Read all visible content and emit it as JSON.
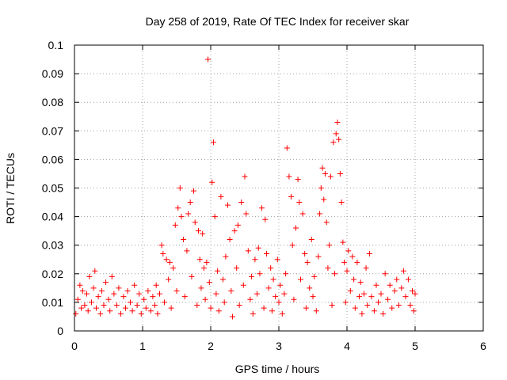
{
  "chart_data": {
    "type": "scatter",
    "title": "Day 258 of 2019, Rate Of TEC Index for receiver skar",
    "xlabel": "GPS time / hours",
    "ylabel": "ROTI / TECUs",
    "xlim": [
      0,
      6
    ],
    "ylim": [
      0,
      0.1
    ],
    "xticks": [
      "0",
      "1",
      "2",
      "3",
      "4",
      "5",
      "6"
    ],
    "yticks": [
      "0",
      "0.01",
      "0.02",
      "0.03",
      "0.04",
      "0.05",
      "0.06",
      "0.07",
      "0.08",
      "0.09",
      "0.1"
    ],
    "grid": true,
    "legend": "none",
    "marker": "+",
    "color": "#ff0000",
    "series": [
      {
        "name": "ROTI",
        "points": [
          [
            0.02,
            0.006
          ],
          [
            0.05,
            0.011
          ],
          [
            0.08,
            0.016
          ],
          [
            0.1,
            0.008
          ],
          [
            0.12,
            0.014
          ],
          [
            0.15,
            0.009
          ],
          [
            0.18,
            0.013
          ],
          [
            0.2,
            0.007
          ],
          [
            0.22,
            0.019
          ],
          [
            0.25,
            0.01
          ],
          [
            0.28,
            0.015
          ],
          [
            0.3,
            0.021
          ],
          [
            0.32,
            0.008
          ],
          [
            0.35,
            0.012
          ],
          [
            0.38,
            0.006
          ],
          [
            0.4,
            0.014
          ],
          [
            0.43,
            0.009
          ],
          [
            0.46,
            0.017
          ],
          [
            0.5,
            0.011
          ],
          [
            0.52,
            0.007
          ],
          [
            0.55,
            0.019
          ],
          [
            0.58,
            0.013
          ],
          [
            0.62,
            0.009
          ],
          [
            0.65,
            0.015
          ],
          [
            0.68,
            0.006
          ],
          [
            0.72,
            0.012
          ],
          [
            0.75,
            0.008
          ],
          [
            0.78,
            0.014
          ],
          [
            0.82,
            0.01
          ],
          [
            0.85,
            0.007
          ],
          [
            0.88,
            0.016
          ],
          [
            0.92,
            0.009
          ],
          [
            0.95,
            0.013
          ],
          [
            0.98,
            0.006
          ],
          [
            1.02,
            0.011
          ],
          [
            1.05,
            0.008
          ],
          [
            1.08,
            0.014
          ],
          [
            1.12,
            0.007
          ],
          [
            1.15,
            0.012
          ],
          [
            1.18,
            0.009
          ],
          [
            1.2,
            0.016
          ],
          [
            1.22,
            0.006
          ],
          [
            1.25,
            0.013
          ],
          [
            1.28,
            0.03
          ],
          [
            1.3,
            0.027
          ],
          [
            1.32,
            0.01
          ],
          [
            1.35,
            0.025
          ],
          [
            1.38,
            0.018
          ],
          [
            1.4,
            0.024
          ],
          [
            1.42,
            0.008
          ],
          [
            1.45,
            0.022
          ],
          [
            1.48,
            0.037
          ],
          [
            1.5,
            0.014
          ],
          [
            1.52,
            0.043
          ],
          [
            1.55,
            0.05
          ],
          [
            1.57,
            0.04
          ],
          [
            1.6,
            0.032
          ],
          [
            1.62,
            0.012
          ],
          [
            1.65,
            0.028
          ],
          [
            1.67,
            0.041
          ],
          [
            1.7,
            0.045
          ],
          [
            1.72,
            0.019
          ],
          [
            1.75,
            0.049
          ],
          [
            1.77,
            0.038
          ],
          [
            1.8,
            0.009
          ],
          [
            1.82,
            0.035
          ],
          [
            1.84,
            0.025
          ],
          [
            1.86,
            0.015
          ],
          [
            1.88,
            0.034
          ],
          [
            1.9,
            0.022
          ],
          [
            1.92,
            0.011
          ],
          [
            1.94,
            0.024
          ],
          [
            1.96,
            0.095
          ],
          [
            1.98,
            0.017
          ],
          [
            2.0,
            0.008
          ],
          [
            2.02,
            0.052
          ],
          [
            2.04,
            0.066
          ],
          [
            2.06,
            0.04
          ],
          [
            2.08,
            0.013
          ],
          [
            2.1,
            0.021
          ],
          [
            2.12,
            0.007
          ],
          [
            2.15,
            0.047
          ],
          [
            2.18,
            0.018
          ],
          [
            2.2,
            0.01
          ],
          [
            2.22,
            0.026
          ],
          [
            2.25,
            0.044
          ],
          [
            2.28,
            0.032
          ],
          [
            2.3,
            0.014
          ],
          [
            2.32,
            0.005
          ],
          [
            2.35,
            0.035
          ],
          [
            2.38,
            0.022
          ],
          [
            2.4,
            0.037
          ],
          [
            2.42,
            0.009
          ],
          [
            2.45,
            0.045
          ],
          [
            2.48,
            0.016
          ],
          [
            2.5,
            0.054
          ],
          [
            2.52,
            0.041
          ],
          [
            2.55,
            0.028
          ],
          [
            2.58,
            0.011
          ],
          [
            2.6,
            0.019
          ],
          [
            2.62,
            0.006
          ],
          [
            2.65,
            0.025
          ],
          [
            2.68,
            0.013
          ],
          [
            2.7,
            0.029
          ],
          [
            2.72,
            0.02
          ],
          [
            2.75,
            0.043
          ],
          [
            2.78,
            0.008
          ],
          [
            2.8,
            0.039
          ],
          [
            2.82,
            0.027
          ],
          [
            2.85,
            0.015
          ],
          [
            2.88,
            0.022
          ],
          [
            2.9,
            0.007
          ],
          [
            2.92,
            0.018
          ],
          [
            2.95,
            0.012
          ],
          [
            2.98,
            0.025
          ],
          [
            3.0,
            0.01
          ],
          [
            3.02,
            0.016
          ],
          [
            3.05,
            0.006
          ],
          [
            3.08,
            0.013
          ],
          [
            3.1,
            0.02
          ],
          [
            3.12,
            0.064
          ],
          [
            3.15,
            0.054
          ],
          [
            3.18,
            0.047
          ],
          [
            3.2,
            0.03
          ],
          [
            3.22,
            0.011
          ],
          [
            3.25,
            0.036
          ],
          [
            3.28,
            0.053
          ],
          [
            3.3,
            0.045
          ],
          [
            3.32,
            0.018
          ],
          [
            3.35,
            0.041
          ],
          [
            3.38,
            0.027
          ],
          [
            3.4,
            0.008
          ],
          [
            3.42,
            0.024
          ],
          [
            3.45,
            0.015
          ],
          [
            3.48,
            0.032
          ],
          [
            3.5,
            0.012
          ],
          [
            3.52,
            0.019
          ],
          [
            3.55,
            0.007
          ],
          [
            3.58,
            0.026
          ],
          [
            3.6,
            0.041
          ],
          [
            3.62,
            0.05
          ],
          [
            3.64,
            0.057
          ],
          [
            3.66,
            0.046
          ],
          [
            3.68,
            0.055
          ],
          [
            3.7,
            0.038
          ],
          [
            3.72,
            0.022
          ],
          [
            3.74,
            0.03
          ],
          [
            3.76,
            0.054
          ],
          [
            3.78,
            0.009
          ],
          [
            3.8,
            0.066
          ],
          [
            3.82,
            0.02
          ],
          [
            3.84,
            0.069
          ],
          [
            3.86,
            0.073
          ],
          [
            3.88,
            0.067
          ],
          [
            3.9,
            0.055
          ],
          [
            3.92,
            0.045
          ],
          [
            3.94,
            0.031
          ],
          [
            3.96,
            0.024
          ],
          [
            3.98,
            0.01
          ],
          [
            4.0,
            0.021
          ],
          [
            4.02,
            0.028
          ],
          [
            4.05,
            0.014
          ],
          [
            4.08,
            0.026
          ],
          [
            4.1,
            0.018
          ],
          [
            4.12,
            0.008
          ],
          [
            4.15,
            0.024
          ],
          [
            4.18,
            0.012
          ],
          [
            4.2,
            0.017
          ],
          [
            4.22,
            0.006
          ],
          [
            4.25,
            0.013
          ],
          [
            4.28,
            0.022
          ],
          [
            4.3,
            0.009
          ],
          [
            4.33,
            0.027
          ],
          [
            4.36,
            0.012
          ],
          [
            4.4,
            0.007
          ],
          [
            4.43,
            0.016
          ],
          [
            4.46,
            0.01
          ],
          [
            4.5,
            0.013
          ],
          [
            4.53,
            0.006
          ],
          [
            4.56,
            0.02
          ],
          [
            4.6,
            0.011
          ],
          [
            4.63,
            0.016
          ],
          [
            4.66,
            0.008
          ],
          [
            4.7,
            0.014
          ],
          [
            4.73,
            0.018
          ],
          [
            4.76,
            0.009
          ],
          [
            4.8,
            0.015
          ],
          [
            4.83,
            0.021
          ],
          [
            4.86,
            0.012
          ],
          [
            4.9,
            0.018
          ],
          [
            4.93,
            0.009
          ],
          [
            4.96,
            0.014
          ],
          [
            4.98,
            0.007
          ],
          [
            5.0,
            0.013
          ]
        ]
      }
    ]
  }
}
